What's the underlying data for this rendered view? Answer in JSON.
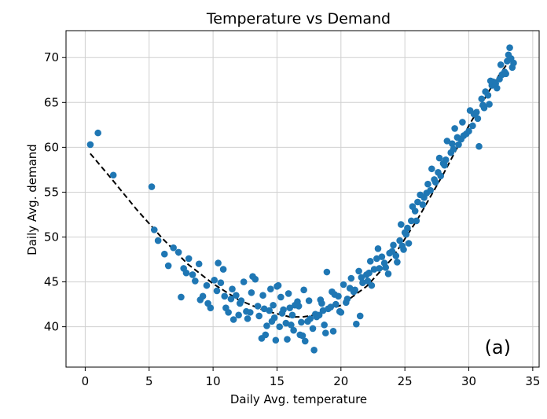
{
  "chart_data": {
    "type": "scatter",
    "title": "Temperature vs Demand",
    "xlabel": "Daily Avg. temperature",
    "ylabel": "Daily Avg. demand",
    "panel_label": "(a)",
    "xlim": [
      -1.5,
      35.5
    ],
    "ylim": [
      35.5,
      73
    ],
    "xticks": [
      0,
      5,
      10,
      15,
      20,
      25,
      30,
      35
    ],
    "yticks": [
      40,
      45,
      50,
      55,
      60,
      65,
      70
    ],
    "grid": true,
    "legend": "none",
    "point_color": "#1f77b4",
    "fit_color": "#000000",
    "scatter": {
      "x": [
        0.4,
        1.0,
        2.2,
        5.2,
        5.4,
        5.7,
        6.2,
        6.5,
        6.9,
        7.3,
        7.5,
        7.7,
        7.9,
        8.1,
        8.4,
        8.6,
        8.9,
        9.2,
        9.5,
        9.8,
        10.1,
        10.4,
        10.6,
        10.9,
        11.2,
        11.5,
        11.8,
        12.1,
        12.4,
        12.7,
        13.0,
        13.3,
        13.6,
        13.9,
        14.1,
        14.4,
        14.7,
        15.0,
        15.2,
        15.4,
        15.7,
        16.0,
        16.3,
        16.6,
        16.9,
        17.2,
        17.5,
        17.8,
        18.1,
        18.4,
        18.7,
        19.0,
        19.3,
        19.6,
        19.9,
        20.2,
        20.5,
        20.8,
        21.1,
        21.4,
        21.7,
        22.0,
        22.3,
        22.6,
        22.9,
        23.2,
        23.5,
        23.8,
        24.1,
        24.4,
        24.7,
        25.0,
        25.3,
        25.6,
        25.9,
        26.2,
        26.5,
        26.8,
        27.1,
        27.4,
        27.7,
        28.0,
        28.3,
        28.6,
        28.9,
        29.2,
        29.5,
        29.8,
        30.1,
        30.4,
        30.7,
        31.0,
        31.3,
        31.6,
        31.9,
        32.2,
        32.5,
        32.8,
        33.1,
        33.4,
        9.0,
        9.6,
        10.3,
        11.0,
        11.6,
        12.2,
        12.9,
        13.5,
        14.2,
        14.8,
        15.5,
        16.1,
        16.8,
        17.4,
        18.0,
        18.6,
        19.2,
        19.8,
        20.4,
        21.0,
        21.6,
        22.2,
        22.8,
        23.4,
        24.0,
        24.6,
        25.2,
        25.8,
        26.4,
        27.0,
        27.6,
        28.2,
        28.8,
        29.4,
        30.0,
        30.6,
        31.2,
        31.8,
        32.4,
        33.0,
        13.1,
        14.5,
        15.1,
        15.9,
        16.4,
        17.1,
        17.6,
        18.3,
        18.9,
        21.2,
        24.9,
        25.1,
        29.1,
        32.1,
        33.2,
        11.4,
        12.6,
        14.0,
        14.9,
        15.3,
        16.2,
        17.0,
        17.9,
        18.5,
        19.4,
        20.0,
        20.7,
        21.5,
        22.4,
        23.0,
        23.7,
        24.3,
        24.8,
        26.0,
        26.7,
        27.3,
        28.1,
        28.7,
        29.6,
        30.3,
        31.1,
        31.7,
        32.6,
        33.3,
        10.8,
        12.0,
        13.8,
        14.6,
        15.8,
        16.7,
        18.8,
        19.5,
        22.1,
        25.5,
        27.8,
        30.8,
        31.5,
        32.9,
        33.5
      ],
      "y": [
        60.3,
        61.6,
        56.9,
        55.6,
        50.8,
        49.6,
        48.1,
        46.8,
        48.8,
        48.3,
        43.3,
        46.5,
        46.0,
        47.6,
        45.8,
        45.1,
        47.0,
        43.4,
        44.6,
        42.1,
        45.2,
        47.1,
        44.9,
        43.4,
        41.6,
        44.2,
        43.5,
        42.6,
        45.0,
        40.9,
        43.8,
        45.3,
        41.2,
        43.5,
        39.1,
        41.8,
        42.4,
        44.5,
        40.0,
        41.5,
        40.4,
        42.1,
        39.6,
        42.8,
        40.5,
        38.4,
        42.9,
        39.8,
        41.1,
        43.0,
        40.2,
        42.0,
        43.9,
        42.5,
        41.7,
        44.7,
        43.1,
        45.4,
        44.1,
        46.2,
        44.9,
        45.8,
        47.3,
        46.4,
        48.7,
        47.8,
        46.6,
        48.2,
        49.1,
        47.2,
        51.4,
        50.5,
        49.3,
        53.4,
        51.8,
        54.7,
        54.4,
        55.9,
        57.6,
        56.1,
        58.8,
        58.2,
        60.7,
        59.4,
        62.1,
        60.3,
        62.8,
        61.5,
        64.1,
        63.7,
        63.2,
        65.4,
        66.2,
        64.8,
        67.3,
        66.6,
        69.2,
        68.4,
        70.3,
        68.9,
        43.0,
        42.6,
        44.0,
        42.1,
        40.8,
        42.9,
        41.6,
        42.3,
        40.1,
        41.0,
        41.9,
        40.2,
        39.1,
        40.6,
        41.4,
        41.8,
        42.2,
        43.4,
        42.7,
        43.9,
        45.5,
        46.0,
        47.6,
        47.1,
        48.4,
        49.6,
        51.0,
        52.9,
        53.6,
        55.2,
        57.2,
        58.6,
        59.8,
        60.9,
        61.8,
        63.9,
        64.4,
        66.9,
        67.6,
        69.6,
        45.6,
        44.2,
        44.6,
        43.7,
        42.4,
        44.1,
        40.9,
        41.3,
        46.1,
        40.3,
        48.6,
        50.3,
        61.1,
        67.1,
        71.1,
        43.1,
        41.7,
        42.0,
        38.5,
        43.3,
        41.3,
        39.0,
        37.4,
        42.6,
        39.5,
        41.6,
        44.3,
        41.2,
        44.6,
        46.5,
        45.9,
        47.9,
        49.0,
        53.9,
        54.9,
        56.4,
        58.0,
        60.4,
        61.3,
        62.4,
        64.7,
        67.4,
        68.1,
        69.9,
        46.4,
        41.3,
        38.7,
        40.6,
        38.6,
        42.3,
        39.3,
        43.6,
        45.1,
        51.8,
        56.8,
        60.1,
        65.8,
        68.2,
        69.4
      ]
    },
    "fit": {
      "x": [
        0.4,
        2,
        4,
        6,
        8,
        10,
        12,
        14,
        16,
        17,
        18,
        20,
        22,
        24,
        26,
        28,
        30,
        32,
        33.4
      ],
      "y": [
        59.3,
        56.6,
        53.1,
        49.9,
        47.0,
        44.8,
        43.0,
        41.8,
        41.1,
        41.1,
        41.3,
        42.4,
        44.5,
        47.6,
        52.0,
        57.0,
        62.4,
        67.3,
        70.1
      ]
    }
  }
}
